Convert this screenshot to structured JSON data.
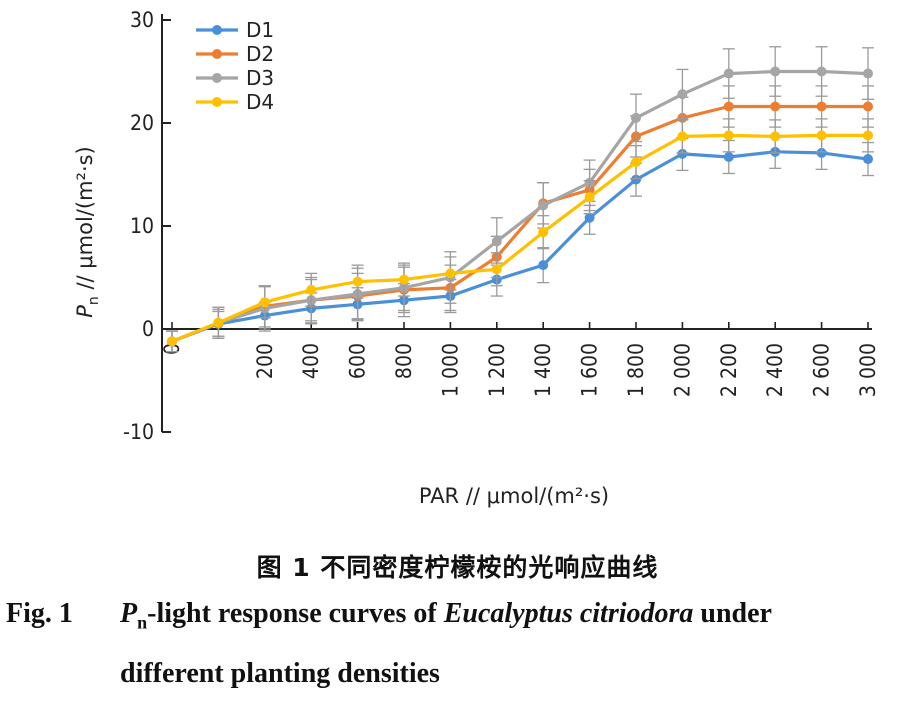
{
  "chart_data": {
    "type": "line",
    "x": [
      0,
      100,
      200,
      400,
      600,
      800,
      1000,
      1200,
      1400,
      1600,
      1800,
      2000,
      2200,
      2400,
      2600,
      3000
    ],
    "x_tick_labels": [
      "0",
      "200",
      "400",
      "600",
      "800",
      "1 000",
      "1 200",
      "1 400",
      "1 600",
      "1 800",
      "2 000",
      "2 200",
      "2 400",
      "2 600",
      "3 000"
    ],
    "y_tick_labels": [
      "-10",
      "0",
      "10",
      "20",
      "30"
    ],
    "ylim": [
      -10,
      30
    ],
    "xlabel": "PAR // μmol/(m²·s)",
    "ylabel": "P_n // μmol/(m²·s)",
    "legend_position": "top-left",
    "series": [
      {
        "name": "D1",
        "color": "#4a90d9",
        "values": [
          -1.2,
          0.5,
          1.3,
          2.0,
          2.4,
          2.8,
          3.2,
          4.8,
          6.2,
          10.8,
          14.5,
          17.0,
          16.7,
          17.2,
          17.1,
          16.5
        ],
        "errors": [
          1.0,
          1.2,
          1.3,
          1.5,
          1.6,
          1.6,
          1.6,
          1.6,
          1.7,
          1.6,
          1.6,
          1.6,
          1.6,
          1.6,
          1.6,
          1.6
        ]
      },
      {
        "name": "D2",
        "color": "#ed7d31",
        "values": [
          -1.2,
          0.6,
          2.2,
          2.8,
          3.2,
          3.8,
          4.0,
          7.0,
          12.2,
          13.5,
          18.7,
          20.5,
          21.6,
          21.6,
          21.6,
          21.6
        ],
        "errors": [
          1.0,
          1.5,
          2.0,
          2.0,
          2.2,
          2.2,
          2.2,
          2.0,
          2.0,
          2.0,
          2.0,
          2.0,
          2.0,
          2.0,
          2.0,
          2.0
        ]
      },
      {
        "name": "D3",
        "color": "#a5a5a5",
        "values": [
          -1.2,
          0.6,
          2.0,
          2.8,
          3.4,
          4.0,
          5.0,
          8.5,
          12.0,
          14.2,
          20.5,
          22.8,
          24.8,
          25.0,
          25.0,
          24.8
        ],
        "errors": [
          1.0,
          1.5,
          2.2,
          2.2,
          2.5,
          2.2,
          2.5,
          2.3,
          2.2,
          2.2,
          2.3,
          2.4,
          2.4,
          2.4,
          2.4,
          2.5
        ]
      },
      {
        "name": "D4",
        "color": "#ffc000",
        "values": [
          -1.2,
          0.6,
          2.6,
          3.8,
          4.6,
          4.8,
          5.4,
          5.8,
          9.4,
          12.8,
          16.2,
          18.7,
          18.8,
          18.7,
          18.8,
          18.8
        ],
        "errors": [
          1.0,
          1.3,
          1.5,
          1.6,
          1.6,
          1.6,
          1.6,
          1.6,
          1.6,
          1.6,
          1.6,
          1.6,
          1.6,
          1.6,
          1.6,
          1.6
        ]
      }
    ]
  },
  "caption": {
    "cn": "图 1   不同密度柠檬桉的光响应曲线",
    "en_label": "Fig. 1",
    "en_pn_main": "P",
    "en_pn_sub": "n",
    "en_line1_rest": "-light response curves of ",
    "en_species": "Eucalyptus citriodora",
    "en_line1_end": " under",
    "en_line2": "different planting densities"
  }
}
